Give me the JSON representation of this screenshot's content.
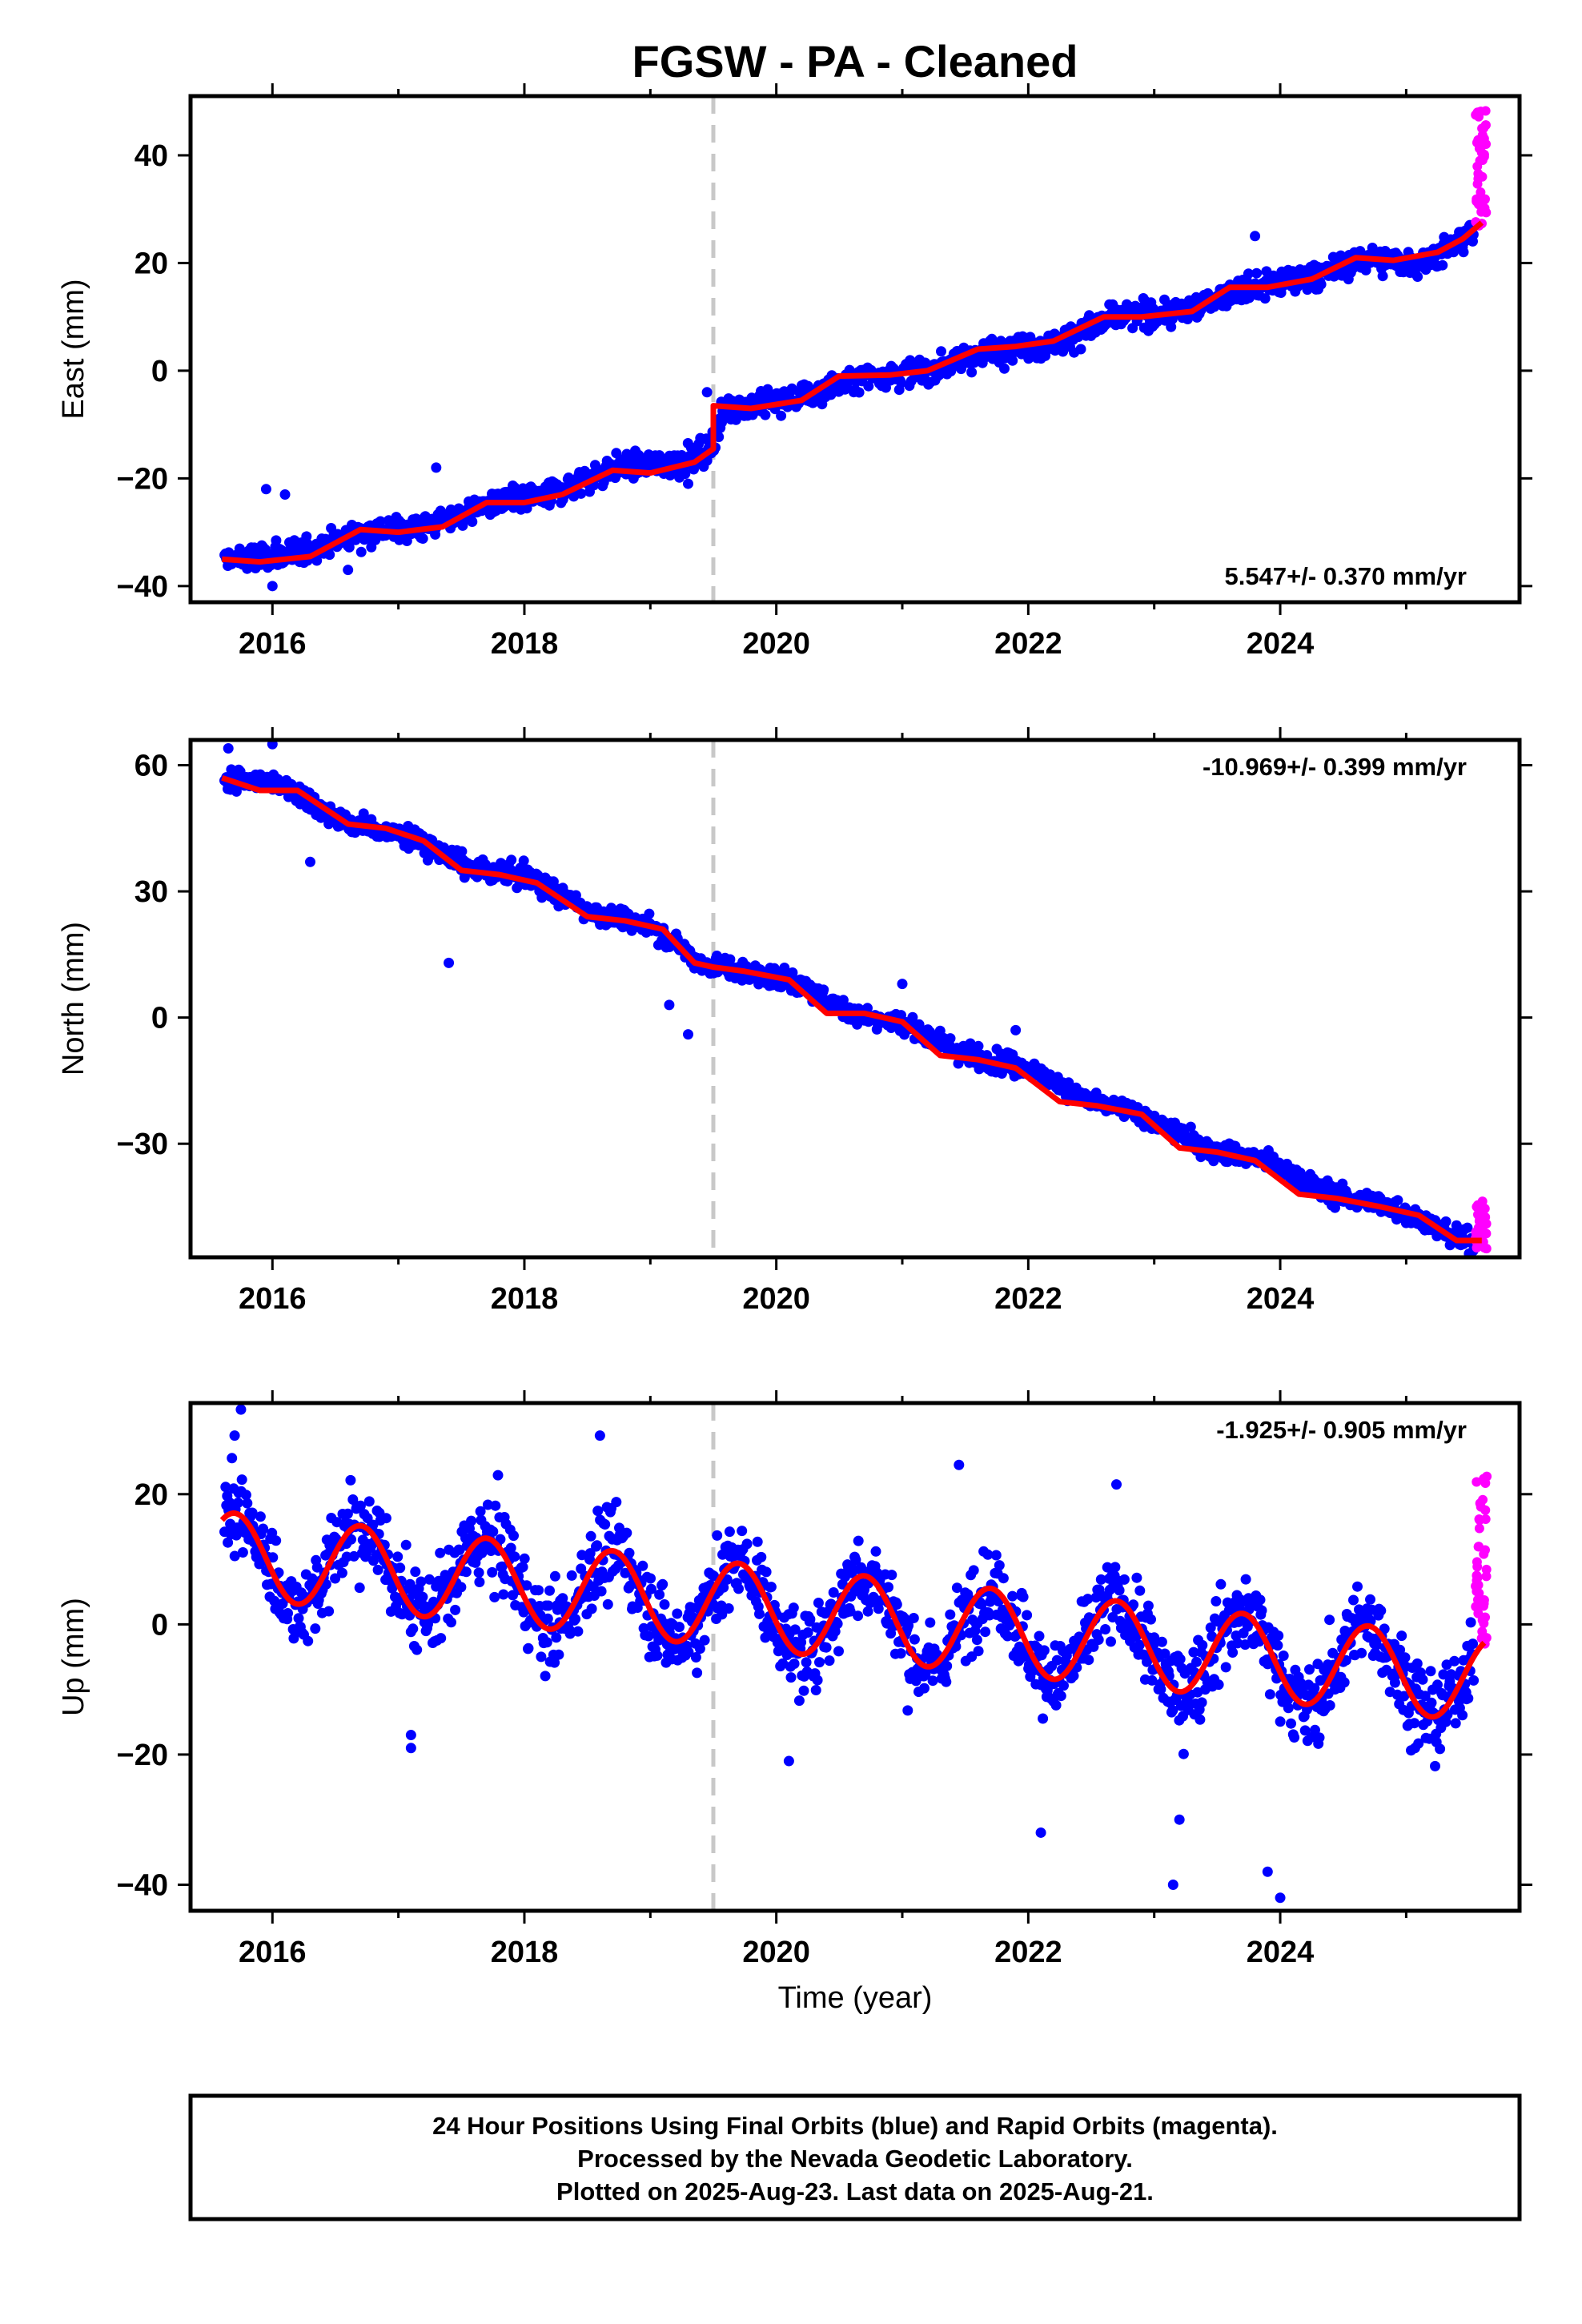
{
  "title": "FGSW  - PA - Cleaned",
  "xlabel": "Time (year)",
  "footer": {
    "line1": "24 Hour Positions Using Final Orbits (blue) and Rapid Orbits (magenta).",
    "line2": "Processed by the Nevada Geodetic Laboratory.",
    "line3": "Plotted on 2025-Aug-23. Last data on 2025-Aug-21."
  },
  "colors": {
    "final": "#0000ff",
    "rapid": "#ff00ff",
    "model": "#ff0000",
    "equipment_change": "#c8c8c8"
  },
  "chart_data": [
    {
      "type": "scatter",
      "component": "east",
      "ylabel": "East (mm)",
      "xlim": [
        2015.35,
        2025.9
      ],
      "ylim": [
        -43,
        51
      ],
      "xticks": [
        2016,
        2018,
        2020,
        2022,
        2024
      ],
      "yticks": [
        -40,
        -20,
        0,
        20,
        40
      ],
      "yticklabels": [
        "−40",
        "−20",
        "0",
        "20",
        "40"
      ],
      "rate": "5.547+/- 0.370 mm/yr",
      "rate_position": "bottom-right",
      "equipment_change_year": 2019.5,
      "model": [
        [
          2015.6,
          -35.0
        ],
        [
          2015.9,
          -35.5
        ],
        [
          2016.3,
          -34.5
        ],
        [
          2016.7,
          -29.5
        ],
        [
          2017.0,
          -30.0
        ],
        [
          2017.35,
          -29.0
        ],
        [
          2017.7,
          -24.5
        ],
        [
          2018.0,
          -24.5
        ],
        [
          2018.3,
          -23.0
        ],
        [
          2018.7,
          -18.5
        ],
        [
          2019.0,
          -19.0
        ],
        [
          2019.35,
          -17.0
        ],
        [
          2019.5,
          -14.5
        ],
        [
          2019.5,
          -6.5
        ],
        [
          2019.8,
          -7.0
        ],
        [
          2020.2,
          -5.5
        ],
        [
          2020.5,
          -1.0
        ],
        [
          2020.9,
          -0.8
        ],
        [
          2021.2,
          0.0
        ],
        [
          2021.6,
          4.0
        ],
        [
          2021.9,
          4.5
        ],
        [
          2022.2,
          5.5
        ],
        [
          2022.6,
          10.0
        ],
        [
          2022.9,
          10.0
        ],
        [
          2023.3,
          11.0
        ],
        [
          2023.6,
          15.5
        ],
        [
          2023.9,
          15.5
        ],
        [
          2024.25,
          17.0
        ],
        [
          2024.6,
          21.0
        ],
        [
          2024.9,
          20.5
        ],
        [
          2025.25,
          22.0
        ],
        [
          2025.45,
          24.5
        ],
        [
          2025.6,
          27.5
        ]
      ],
      "final_points_anchor": [
        [
          2015.7,
          -35
        ],
        [
          2016.2,
          -34
        ],
        [
          2016.7,
          -30
        ],
        [
          2017.2,
          -29
        ],
        [
          2017.7,
          -25
        ],
        [
          2018.2,
          -23
        ],
        [
          2018.7,
          -18
        ],
        [
          2019.2,
          -17
        ],
        [
          2019.45,
          -15
        ],
        [
          2019.6,
          -7
        ],
        [
          2020.2,
          -5
        ],
        [
          2020.7,
          -1
        ],
        [
          2021.2,
          0
        ],
        [
          2021.7,
          4
        ],
        [
          2022.2,
          5
        ],
        [
          2022.7,
          10
        ],
        [
          2023.2,
          11
        ],
        [
          2023.7,
          15
        ],
        [
          2024.2,
          17
        ],
        [
          2024.7,
          21
        ],
        [
          2025.1,
          20
        ],
        [
          2025.5,
          25
        ]
      ],
      "final_outliers": [
        [
          2015.95,
          -22
        ],
        [
          2016.1,
          -23
        ],
        [
          2017.3,
          -18
        ],
        [
          2019.3,
          -21
        ],
        [
          2019.45,
          -4
        ],
        [
          2023.8,
          25
        ],
        [
          2016.0,
          -40
        ],
        [
          2016.6,
          -37
        ]
      ],
      "rapid_points_range": {
        "x": [
          2025.55,
          2025.64
        ],
        "y": [
          26,
          49
        ]
      }
    },
    {
      "type": "scatter",
      "component": "north",
      "ylabel": "North (mm)",
      "xlim": [
        2015.35,
        2025.9
      ],
      "ylim": [
        -57,
        66
      ],
      "xticks": [
        2016,
        2018,
        2020,
        2022,
        2024
      ],
      "yticks": [
        -30,
        0,
        30,
        60
      ],
      "yticklabels": [
        "−30",
        "0",
        "30",
        "60"
      ],
      "rate": "-10.969+/- 0.399 mm/yr",
      "rate_position": "top-right",
      "equipment_change_year": 2019.5,
      "model": [
        [
          2015.6,
          57
        ],
        [
          2015.9,
          54
        ],
        [
          2016.2,
          54
        ],
        [
          2016.6,
          46
        ],
        [
          2016.9,
          45
        ],
        [
          2017.2,
          42
        ],
        [
          2017.5,
          35
        ],
        [
          2017.8,
          34
        ],
        [
          2018.1,
          32
        ],
        [
          2018.5,
          24
        ],
        [
          2018.8,
          23
        ],
        [
          2019.1,
          21
        ],
        [
          2019.35,
          13
        ],
        [
          2019.5,
          12
        ],
        [
          2019.75,
          11
        ],
        [
          2020.1,
          9
        ],
        [
          2020.4,
          1
        ],
        [
          2020.7,
          1
        ],
        [
          2021.0,
          -1
        ],
        [
          2021.3,
          -9
        ],
        [
          2021.6,
          -10
        ],
        [
          2021.9,
          -12
        ],
        [
          2022.25,
          -20
        ],
        [
          2022.55,
          -21
        ],
        [
          2022.9,
          -23
        ],
        [
          2023.2,
          -31
        ],
        [
          2023.5,
          -32
        ],
        [
          2023.8,
          -34
        ],
        [
          2024.15,
          -42
        ],
        [
          2024.45,
          -43
        ],
        [
          2024.8,
          -45
        ],
        [
          2025.1,
          -47
        ],
        [
          2025.4,
          -53
        ],
        [
          2025.6,
          -53
        ]
      ],
      "final_points_anchor": [
        [
          2015.7,
          57
        ],
        [
          2016.1,
          55
        ],
        [
          2016.6,
          46
        ],
        [
          2017.1,
          43
        ],
        [
          2017.6,
          35
        ],
        [
          2018.0,
          34
        ],
        [
          2018.6,
          24
        ],
        [
          2019.0,
          22
        ],
        [
          2019.4,
          13
        ],
        [
          2019.7,
          11
        ],
        [
          2020.1,
          9
        ],
        [
          2020.6,
          1
        ],
        [
          2021.0,
          -1
        ],
        [
          2021.5,
          -9
        ],
        [
          2022.0,
          -12
        ],
        [
          2022.5,
          -20
        ],
        [
          2022.9,
          -23
        ],
        [
          2023.4,
          -31
        ],
        [
          2023.9,
          -34
        ],
        [
          2024.4,
          -42
        ],
        [
          2024.9,
          -45
        ],
        [
          2025.45,
          -53
        ]
      ],
      "final_outliers": [
        [
          2015.65,
          64
        ],
        [
          2016.0,
          65
        ],
        [
          2016.3,
          37
        ],
        [
          2017.4,
          13
        ],
        [
          2019.3,
          -4
        ],
        [
          2019.15,
          3
        ],
        [
          2021.0,
          8
        ],
        [
          2021.9,
          -3
        ]
      ],
      "rapid_points_range": {
        "x": [
          2025.55,
          2025.64
        ],
        "y": [
          -55,
          -43
        ]
      }
    },
    {
      "type": "scatter",
      "component": "up",
      "ylabel": "Up (mm)",
      "xlim": [
        2015.35,
        2025.9
      ],
      "ylim": [
        -44,
        34
      ],
      "xticks": [
        2016,
        2018,
        2020,
        2022,
        2024
      ],
      "yticks": [
        -40,
        -20,
        0,
        20
      ],
      "yticklabels": [
        "−40",
        "−20",
        "0",
        "20"
      ],
      "rate": "-1.925+/- 0.905 mm/yr",
      "rate_position": "top-right",
      "equipment_change_year": 2019.5,
      "model_params": {
        "x0": 2015.6,
        "x1": 2025.62,
        "offset_at_2016": 10.0,
        "trend_mm_per_yr": -1.925,
        "amplitude": 6.5,
        "phase_peak_year": 2015.7,
        "period_years": 1.0
      },
      "final_points_spread": 6.0,
      "final_outliers": [
        [
          2015.75,
          33
        ],
        [
          2015.7,
          29
        ],
        [
          2017.1,
          -19
        ],
        [
          2017.1,
          -17
        ],
        [
          2018.6,
          29
        ],
        [
          2021.45,
          24.5
        ],
        [
          2022.1,
          -32
        ],
        [
          2022.7,
          21.5
        ],
        [
          2023.15,
          -40
        ],
        [
          2023.9,
          -38
        ],
        [
          2024.0,
          -42
        ],
        [
          2023.2,
          -30
        ],
        [
          2020.1,
          -21
        ]
      ],
      "rapid_points_range": {
        "x": [
          2025.55,
          2025.64
        ],
        "y": [
          -3,
          23
        ]
      }
    }
  ]
}
